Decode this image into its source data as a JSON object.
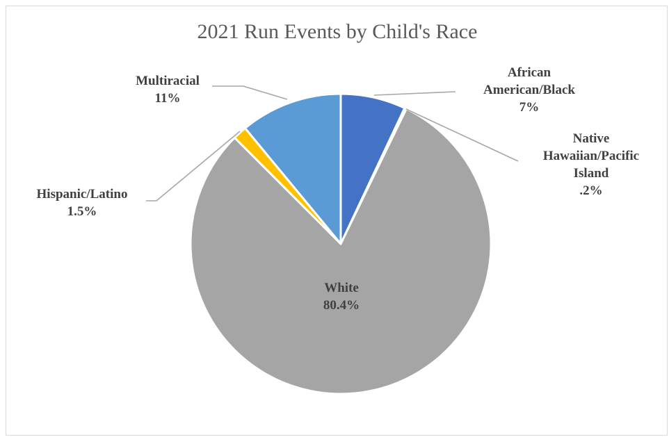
{
  "chart_data": {
    "type": "pie",
    "title": "2021 Run Events by Child's Race",
    "slices": [
      {
        "label_lines": [
          "African",
          "American/Black"
        ],
        "value_text": "7%",
        "value": 7.0,
        "color": "#4472c4"
      },
      {
        "label_lines": [
          "Native",
          "Hawaiian/Pacific",
          "Island"
        ],
        "value_text": ".2%",
        "value": 0.2,
        "color": "#ed7d31"
      },
      {
        "label_lines": [
          "White"
        ],
        "value_text": "80.4%",
        "value": 80.4,
        "color": "#a5a5a5"
      },
      {
        "label_lines": [
          "Hispanic/Latino"
        ],
        "value_text": "1.5%",
        "value": 1.5,
        "color": "#ffc000"
      },
      {
        "label_lines": [
          "Multiracial"
        ],
        "value_text": "11%",
        "value": 11.0,
        "color": "#5b9bd5"
      }
    ]
  }
}
